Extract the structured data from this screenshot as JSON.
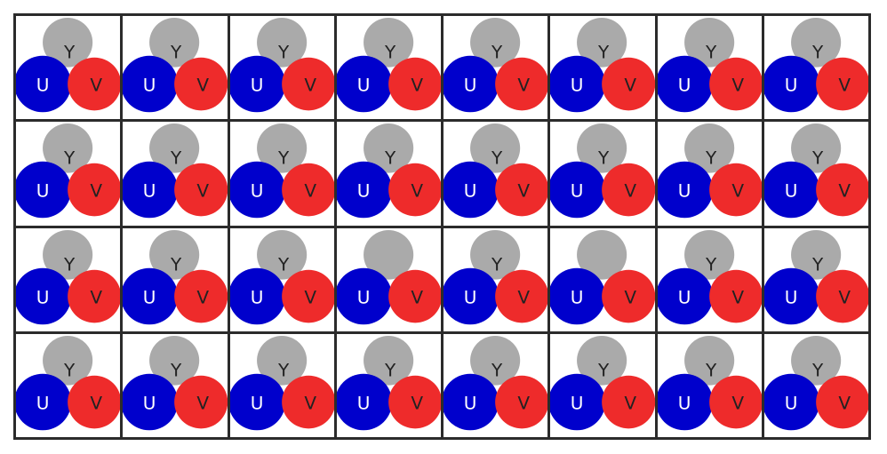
{
  "rows": 4,
  "cols": 8,
  "colors": {
    "y_circle": "#aaaaaa",
    "u_circle": "#0000cc",
    "v_circle": "#ee2b2b",
    "y_label": "#222222",
    "u_label": "#ffffff",
    "v_label": "#222222",
    "border": "#2b2b2b"
  },
  "labels": {
    "y": "Y",
    "u": "U",
    "v": "V"
  },
  "cells": [
    {
      "row": 1,
      "col": 1,
      "y_label_visible": true
    },
    {
      "row": 1,
      "col": 2,
      "y_label_visible": true
    },
    {
      "row": 1,
      "col": 3,
      "y_label_visible": true
    },
    {
      "row": 1,
      "col": 4,
      "y_label_visible": true
    },
    {
      "row": 1,
      "col": 5,
      "y_label_visible": true
    },
    {
      "row": 1,
      "col": 6,
      "y_label_visible": true
    },
    {
      "row": 1,
      "col": 7,
      "y_label_visible": true
    },
    {
      "row": 1,
      "col": 8,
      "y_label_visible": true
    },
    {
      "row": 2,
      "col": 1,
      "y_label_visible": true
    },
    {
      "row": 2,
      "col": 2,
      "y_label_visible": true
    },
    {
      "row": 2,
      "col": 3,
      "y_label_visible": true
    },
    {
      "row": 2,
      "col": 4,
      "y_label_visible": true
    },
    {
      "row": 2,
      "col": 5,
      "y_label_visible": true
    },
    {
      "row": 2,
      "col": 6,
      "y_label_visible": true
    },
    {
      "row": 2,
      "col": 7,
      "y_label_visible": true
    },
    {
      "row": 2,
      "col": 8,
      "y_label_visible": true
    },
    {
      "row": 3,
      "col": 1,
      "y_label_visible": true
    },
    {
      "row": 3,
      "col": 2,
      "y_label_visible": true
    },
    {
      "row": 3,
      "col": 3,
      "y_label_visible": true
    },
    {
      "row": 3,
      "col": 4,
      "y_label_visible": false
    },
    {
      "row": 3,
      "col": 5,
      "y_label_visible": true
    },
    {
      "row": 3,
      "col": 6,
      "y_label_visible": false
    },
    {
      "row": 3,
      "col": 7,
      "y_label_visible": true
    },
    {
      "row": 3,
      "col": 8,
      "y_label_visible": true
    },
    {
      "row": 4,
      "col": 1,
      "y_label_visible": true
    },
    {
      "row": 4,
      "col": 2,
      "y_label_visible": true
    },
    {
      "row": 4,
      "col": 3,
      "y_label_visible": true
    },
    {
      "row": 4,
      "col": 4,
      "y_label_visible": true
    },
    {
      "row": 4,
      "col": 5,
      "y_label_visible": true
    },
    {
      "row": 4,
      "col": 6,
      "y_label_visible": true
    },
    {
      "row": 4,
      "col": 7,
      "y_label_visible": true
    },
    {
      "row": 4,
      "col": 8,
      "y_label_visible": true
    }
  ]
}
